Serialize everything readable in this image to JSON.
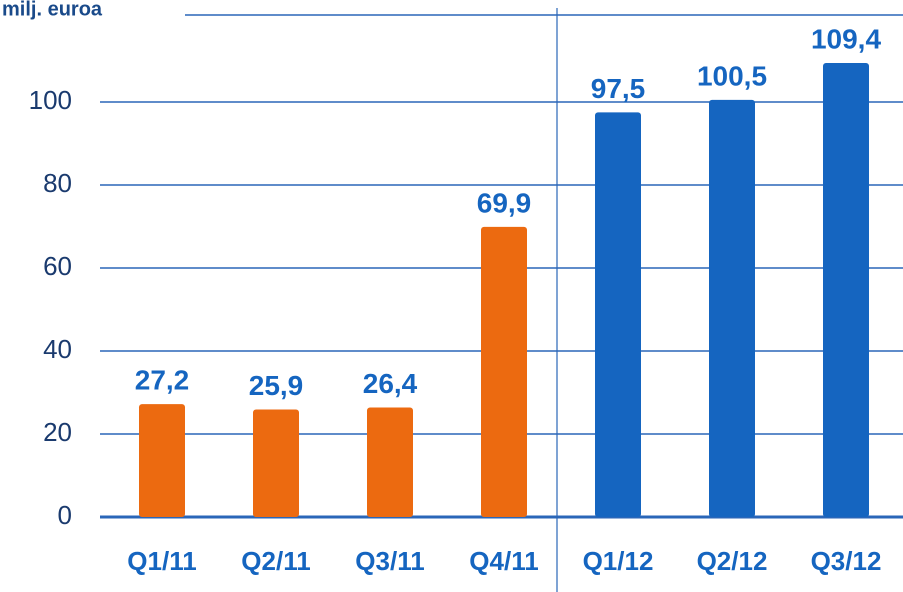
{
  "chart_data": {
    "type": "bar",
    "title": "milj. euroa",
    "categories": [
      "Q1/11",
      "Q2/11",
      "Q3/11",
      "Q4/11",
      "Q1/12",
      "Q2/12",
      "Q3/12"
    ],
    "values": [
      27.2,
      25.9,
      26.4,
      69.9,
      97.5,
      100.5,
      109.4
    ],
    "value_labels": [
      "27,2",
      "25,9",
      "26,4",
      "69,9",
      "97,5",
      "100,5",
      "109,4"
    ],
    "colors": [
      "#ec6a10",
      "#ec6a10",
      "#ec6a10",
      "#ec6a10",
      "#1565c0",
      "#1565c0",
      "#1565c0"
    ],
    "ylim": [
      0,
      120
    ],
    "yticks": [
      0,
      20,
      40,
      60,
      80,
      100
    ],
    "grid": true
  }
}
